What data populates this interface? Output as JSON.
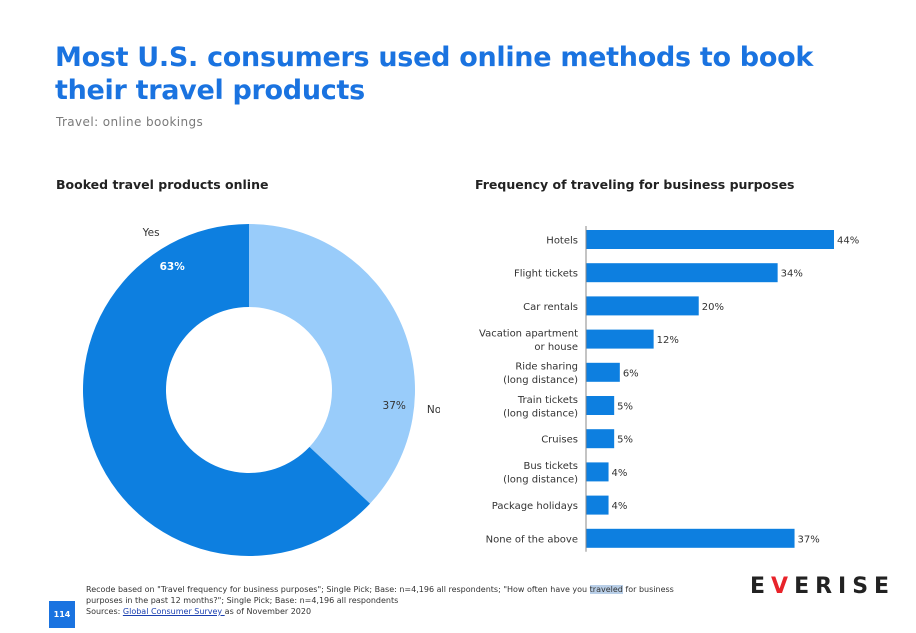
{
  "header": {
    "title": "Most U.S. consumers used online methods to book their travel products",
    "subtitle": "Travel: online bookings"
  },
  "chart_data": [
    {
      "type": "pie",
      "title": "Booked travel products online",
      "donut": true,
      "slices": [
        {
          "label": "No",
          "value": 37,
          "value_label": "37%",
          "color": "#99ccfa"
        },
        {
          "label": "Yes",
          "value": 63,
          "value_label": "63%",
          "color": "#0d7fe0"
        }
      ]
    },
    {
      "type": "bar",
      "orientation": "horizontal",
      "title": "Frequency of traveling for business purposes",
      "color": "#0d7fe0",
      "categories": [
        "Hotels",
        "Flight tickets",
        "Car rentals",
        "Vacation apartment or house",
        "Ride sharing (long distance)",
        "Train tickets (long distance)",
        "Cruises",
        "Bus tickets (long distance)",
        "Package holidays",
        "None of the above"
      ],
      "category_lines": [
        [
          "Hotels"
        ],
        [
          "Flight tickets"
        ],
        [
          "Car rentals"
        ],
        [
          "Vacation apartment",
          "or house"
        ],
        [
          "Ride sharing",
          "(long distance)"
        ],
        [
          "Train tickets",
          "(long distance)"
        ],
        [
          "Cruises"
        ],
        [
          "Bus tickets",
          "(long distance)"
        ],
        [
          "Package holidays"
        ],
        [
          "None of the above"
        ]
      ],
      "values": [
        44,
        34,
        20,
        12,
        6,
        5,
        5,
        4,
        4,
        37
      ],
      "value_labels": [
        "44%",
        "34%",
        "20%",
        "12%",
        "6%",
        "5%",
        "5%",
        "4%",
        "4%",
        "37%"
      ],
      "xlim": [
        0,
        44
      ]
    }
  ],
  "footer": {
    "note_a": "Recode based on \"Travel frequency for business purposes\"; Single Pick; Base: n=4,196 all respondents; \"How often have you ",
    "note_hl": "traveled",
    "note_b": " for business purposes in the past 12 months?\"; Single Pick; Base: n=4,196 all respondents",
    "sources_label": "Sources: ",
    "sources_link": "Global Consumer Survey ",
    "sources_rest": "as of November 2020",
    "page_number": "114"
  },
  "logo": {
    "a": "E",
    "v": "V",
    "b": "ERISE"
  }
}
